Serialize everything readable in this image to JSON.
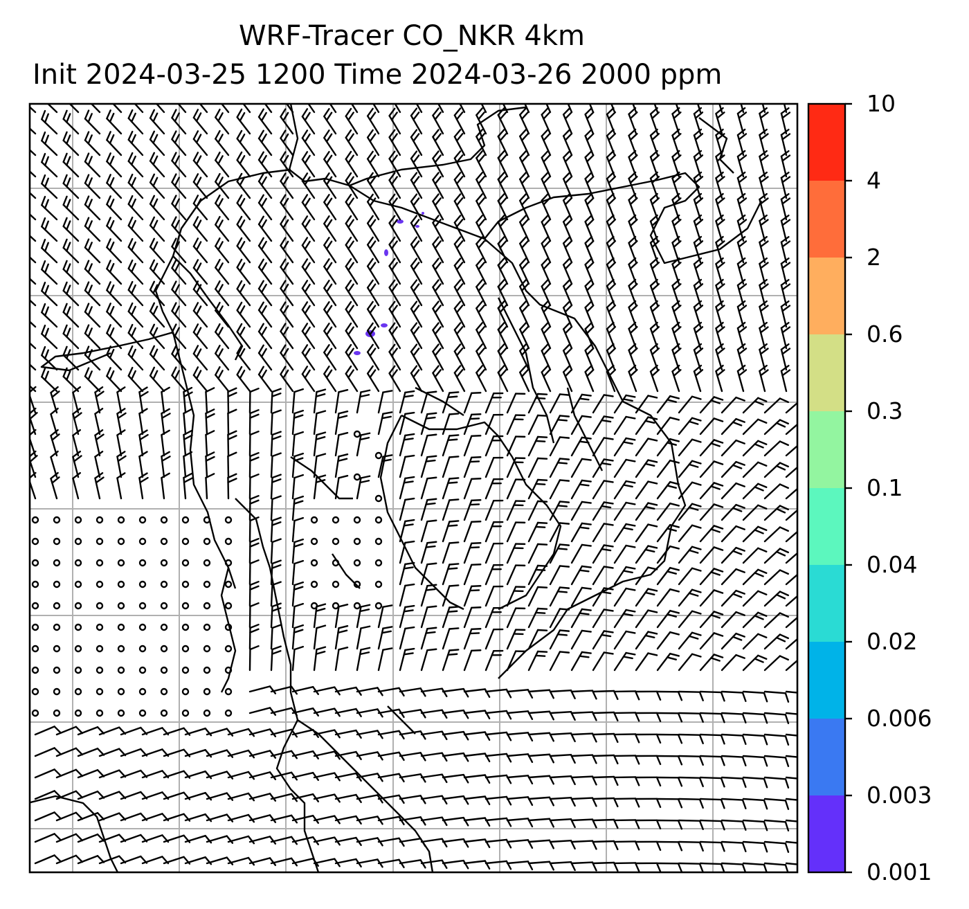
{
  "title": {
    "line1": "WRF-Tracer CO_NKR 4km",
    "line2": "Init 2024-03-25 1200 Time 2024-03-26 2000 ppm"
  },
  "colorbar": {
    "levels": [
      "10",
      "4",
      "2",
      "0.6",
      "0.3",
      "0.1",
      "0.04",
      "0.02",
      "0.006",
      "0.003",
      "0.001"
    ],
    "colors": [
      "#ff2a14",
      "#ff6d3a",
      "#ffae5e",
      "#d3df86",
      "#93f5a0",
      "#5cf7be",
      "#2adbd4",
      "#00b3e8",
      "#3a79f2",
      "#6430fa"
    ]
  },
  "map": {
    "frame_color": "#000000",
    "grid_color": "#b0b0b0",
    "tracer_color": "#6a35f0",
    "icons": [
      "wind-barb-icon",
      "calm-circle-icon"
    ]
  }
}
